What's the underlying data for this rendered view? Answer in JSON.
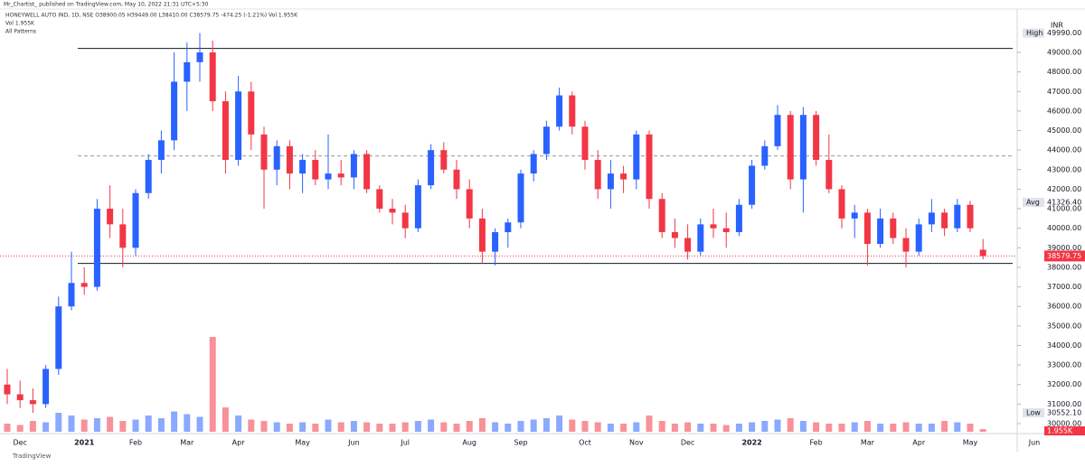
{
  "header": {
    "publisher": "Mr_Chartist_ published on TradingView.com, May 10, 2022 21:31 UTC+5:30",
    "symbol": "HONEYWELL AUTO IND, 1D, NSE  O38900.05 H39449.00 L38410.00 C38579.75 -474.25 (-1.21%) Vol 1.955K",
    "volume": "Vol 1.955K",
    "patterns": "All Patterns"
  },
  "footer": {
    "brand": "TradingView"
  },
  "chart_data": {
    "type": "candlestick",
    "currency": "INR",
    "categories": [
      null,
      "Dec",
      null,
      null,
      null,
      null,
      "2021",
      null,
      null,
      null,
      "Feb",
      null,
      null,
      null,
      "Mar",
      null,
      null,
      null,
      "Apr",
      null,
      null,
      null,
      null,
      "May",
      null,
      null,
      null,
      "Jun",
      null,
      null,
      null,
      "Jul",
      null,
      null,
      null,
      null,
      "Aug",
      null,
      null,
      null,
      "Sep",
      null,
      null,
      null,
      null,
      "Oct",
      null,
      null,
      null,
      "Nov",
      null,
      null,
      null,
      "Dec",
      null,
      null,
      null,
      null,
      "2022",
      null,
      null,
      null,
      null,
      "Feb",
      null,
      null,
      null,
      "Mar",
      null,
      null,
      null,
      "Apr",
      null,
      null,
      null,
      "May",
      null,
      null,
      null,
      null,
      "Jun"
    ],
    "open": [
      32000,
      31500,
      31200,
      31000,
      32800,
      36000,
      37200,
      37000,
      41000,
      40200,
      39000,
      41800,
      43500,
      44500,
      47500,
      48500,
      49000,
      46500,
      43500,
      47000,
      44800,
      43000,
      44200,
      42800,
      43500,
      42500,
      42800,
      42600,
      43800,
      42000,
      41000,
      40800,
      40000,
      42200,
      44000,
      43000,
      42000,
      40500,
      38800,
      39800,
      40300,
      42800,
      43800,
      45200,
      46800,
      45200,
      43500,
      42000,
      42800,
      42500,
      44800,
      41500,
      39800,
      39500,
      38800,
      40200,
      40000,
      39800,
      41200,
      43200,
      44200,
      45800,
      42500,
      45800,
      43500,
      42000,
      40500,
      40800,
      39200,
      40500,
      39500,
      38800,
      40200,
      40800,
      40000,
      41200,
      38900.05,
      null,
      null,
      null,
      null
    ],
    "high": [
      32800,
      32200,
      31800,
      33000,
      36500,
      38800,
      38000,
      41500,
      42200,
      41000,
      42000,
      43800,
      45000,
      49000,
      49500,
      49990,
      49600,
      47000,
      47800,
      47500,
      45200,
      44500,
      44500,
      43800,
      44000,
      44800,
      43500,
      44000,
      44000,
      42200,
      41500,
      41200,
      42500,
      44300,
      44400,
      43500,
      42500,
      41000,
      40000,
      40500,
      43000,
      44000,
      45500,
      47200,
      47000,
      45500,
      44000,
      43500,
      43200,
      45000,
      45000,
      41800,
      40500,
      40200,
      40500,
      41000,
      40800,
      41500,
      43500,
      44500,
      46300,
      46000,
      46200,
      46000,
      44800,
      42200,
      41200,
      41000,
      41000,
      40800,
      40000,
      40500,
      41500,
      41000,
      41500,
      41400,
      39449,
      null,
      null,
      null,
      null
    ],
    "low": [
      31000,
      30800,
      30552.1,
      30800,
      32500,
      35800,
      36600,
      36800,
      39500,
      38000,
      38600,
      41500,
      42800,
      44000,
      46000,
      47500,
      46000,
      42800,
      43200,
      44000,
      41000,
      42200,
      42000,
      41800,
      42200,
      42000,
      42200,
      42000,
      41800,
      40800,
      40200,
      39500,
      39800,
      42000,
      42800,
      41500,
      40000,
      38200,
      38100,
      39000,
      40000,
      42400,
      43500,
      45000,
      44800,
      43000,
      41500,
      41000,
      41800,
      42000,
      41000,
      39500,
      39000,
      38400,
      38600,
      39500,
      39000,
      39600,
      41000,
      43000,
      44000,
      42000,
      40800,
      43200,
      41800,
      40000,
      39500,
      38100,
      39000,
      39200,
      38000,
      38600,
      39800,
      39600,
      39800,
      39800,
      38410,
      null,
      null,
      null,
      null
    ],
    "close": [
      31500,
      31200,
      31000,
      32800,
      36000,
      37200,
      37000,
      41000,
      40200,
      39000,
      41800,
      43500,
      44500,
      47500,
      48500,
      49000,
      46500,
      43500,
      47000,
      44800,
      43000,
      44200,
      42800,
      43500,
      42500,
      42800,
      42600,
      43800,
      42000,
      41000,
      40800,
      40000,
      42200,
      44000,
      43000,
      42000,
      40500,
      38800,
      39800,
      40300,
      42800,
      43800,
      45200,
      46800,
      45200,
      43500,
      42000,
      42800,
      42500,
      44800,
      41500,
      39800,
      39500,
      38800,
      40200,
      40000,
      39800,
      41200,
      43200,
      44200,
      45800,
      42500,
      45800,
      43500,
      42000,
      40500,
      40800,
      39200,
      40500,
      39500,
      38800,
      40200,
      40800,
      40000,
      41200,
      40000,
      38579.75,
      null,
      null,
      null,
      null
    ],
    "volume": [
      6,
      5,
      8,
      7,
      14,
      12,
      9,
      10,
      11,
      8,
      9,
      12,
      10,
      15,
      13,
      11,
      70,
      18,
      12,
      9,
      8,
      7,
      6,
      7,
      6,
      9,
      7,
      8,
      7,
      6,
      6,
      7,
      8,
      9,
      7,
      6,
      8,
      10,
      7,
      6,
      8,
      9,
      10,
      12,
      9,
      8,
      7,
      6,
      6,
      7,
      12,
      8,
      6,
      7,
      6,
      6,
      5,
      6,
      7,
      8,
      9,
      10,
      8,
      7,
      6,
      6,
      7,
      8,
      6,
      6,
      7,
      6,
      6,
      8,
      7,
      6,
      1.955,
      null,
      null,
      null,
      null
    ],
    "volume_label": "1.955K",
    "up_color": "#2962ff",
    "down_color": "#f23645",
    "ylim": [
      29584,
      51127
    ],
    "yticks": [
      {
        "value": 30000,
        "label": "30000.00"
      },
      {
        "value": 31000,
        "label": "31000.00"
      },
      {
        "value": 32000,
        "label": "32000.00"
      },
      {
        "value": 33000,
        "label": "33000.00"
      },
      {
        "value": 34000,
        "label": "34000.00"
      },
      {
        "value": 35000,
        "label": "35000.00"
      },
      {
        "value": 36000,
        "label": "36000.00"
      },
      {
        "value": 37000,
        "label": "37000.00"
      },
      {
        "value": 38000,
        "label": "38000.00"
      },
      {
        "value": 39000,
        "label": "39000.00"
      },
      {
        "value": 40000,
        "label": "40000.00"
      },
      {
        "value": 41000,
        "label": "41000.00"
      },
      {
        "value": 42000,
        "label": "42000.00"
      },
      {
        "value": 43000,
        "label": "43000.00"
      },
      {
        "value": 44000,
        "label": "44000.00"
      },
      {
        "value": 45000,
        "label": "45000.00"
      },
      {
        "value": 46000,
        "label": "46000.00"
      },
      {
        "value": 47000,
        "label": "47000.00"
      },
      {
        "value": 48000,
        "label": "48000.00"
      },
      {
        "value": 49000,
        "label": "49000.00"
      }
    ],
    "markers": [
      {
        "name": "High",
        "value": 49990,
        "label": "49990.00"
      },
      {
        "name": "Avg",
        "value": 41326.4,
        "label": "41326.40"
      },
      {
        "name": "Low",
        "value": 30552.1,
        "label": "30552.10"
      }
    ],
    "last_price": {
      "value": 38579.75,
      "label": "38579.75"
    },
    "levels": [
      {
        "value": 49200,
        "style": "solid"
      },
      {
        "value": 43700,
        "style": "dashed"
      },
      {
        "value": 38200,
        "style": "solid"
      }
    ],
    "grid": false
  }
}
